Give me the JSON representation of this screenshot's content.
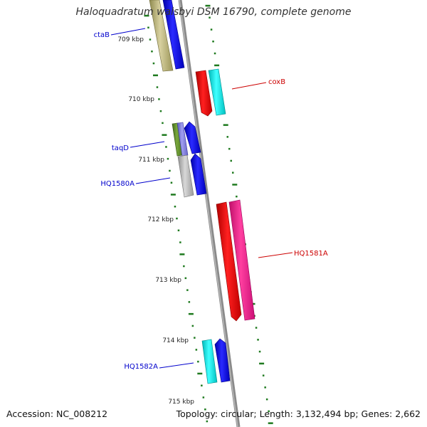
{
  "title": "Haloquadratum walsbyi DSM 16790, complete genome",
  "footer": {
    "accession": "Accession: NC_008212",
    "summary": "Topology: circular; Length: 3,132,494 bp; Genes: 2,662"
  },
  "ticks": [
    "709 kbp",
    "710 kbp",
    "711 kbp",
    "712 kbp",
    "713 kbp",
    "714 kbp",
    "715 kbp"
  ],
  "genes": [
    {
      "label": "ctaB",
      "color": "#0000cc"
    },
    {
      "label": "coxB",
      "color": "#cc0000"
    },
    {
      "label": "taqD",
      "color": "#0000cc"
    },
    {
      "label": "HQ1580A",
      "color": "#0000cc"
    },
    {
      "label": "HQ1581A",
      "color": "#cc0000"
    },
    {
      "label": "HQ1582A",
      "color": "#0000cc"
    }
  ],
  "colors": {
    "backbone": "#8a8a8a",
    "ruler": "#1f7a1f",
    "olive": "#b5ad6e",
    "blue": "#0000ee",
    "red": "#ee0000",
    "cyan": "#00e5e5",
    "magenta": "#ee1188",
    "gray": "#b0b0b0",
    "green": "#5a8a2a",
    "slate": "#7a78d8"
  }
}
